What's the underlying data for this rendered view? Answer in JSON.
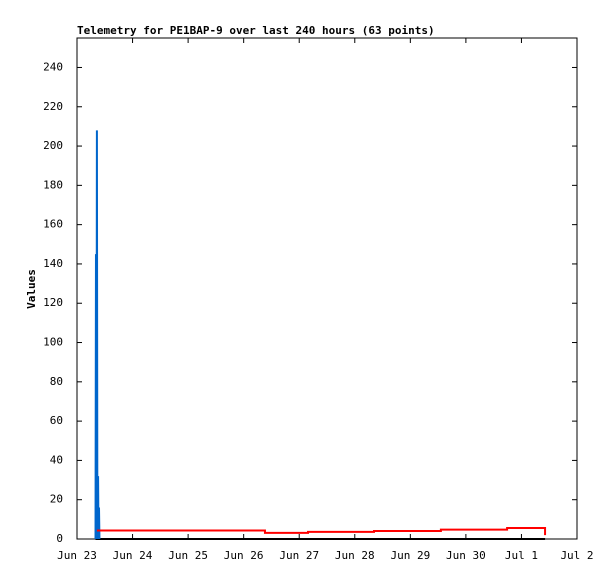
{
  "chart_data": {
    "type": "line",
    "title": "Telemetry for PE1BAP-9 over last 240 hours (63 points)",
    "y_label": "Values",
    "xlim": [
      0,
      216
    ],
    "ylim": [
      0,
      255
    ],
    "xticks": [
      {
        "value": 0,
        "label": "Jun 23"
      },
      {
        "value": 24,
        "label": "Jun 24"
      },
      {
        "value": 48,
        "label": "Jun 25"
      },
      {
        "value": 72,
        "label": "Jun 26"
      },
      {
        "value": 96,
        "label": "Jun 27"
      },
      {
        "value": 120,
        "label": "Jun 28"
      },
      {
        "value": 144,
        "label": "Jun 29"
      },
      {
        "value": 168,
        "label": "Jun 30"
      },
      {
        "value": 192,
        "label": "Jul 1"
      },
      {
        "value": 216,
        "label": "Jul 2"
      }
    ],
    "yticks": [
      0,
      20,
      40,
      60,
      80,
      100,
      120,
      140,
      160,
      180,
      200,
      220,
      240
    ],
    "series": [
      {
        "color": "#000000",
        "step": false,
        "x": [
          8.0,
          202.2
        ],
        "values": [
          0,
          0
        ]
      },
      {
        "color": "#0066cc",
        "step": false,
        "x": [
          8.0,
          8.2,
          8.4,
          8.6,
          8.8,
          9.1,
          9.3,
          9.5,
          9.7
        ],
        "values": [
          0,
          145,
          0,
          208,
          0,
          32,
          0,
          16,
          0
        ]
      },
      {
        "color": "#ff0000",
        "step": true,
        "x": [
          8.6,
          81.2,
          99.8,
          128.3,
          157.2,
          185.8,
          202.2
        ],
        "values": [
          4.3,
          3.1,
          3.6,
          4.1,
          4.8,
          5.6,
          2
        ]
      }
    ]
  }
}
